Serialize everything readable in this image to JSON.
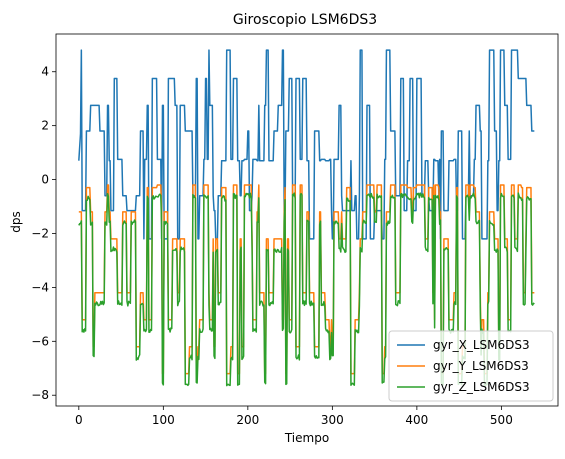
{
  "chart_data": {
    "type": "line",
    "title": "Giroscopio LSM6DS3",
    "xlabel": "Tiempo",
    "ylabel": "dps",
    "xlim": [
      -27,
      567
    ],
    "ylim": [
      -8.4,
      5.4
    ],
    "xticks": [
      0,
      100,
      200,
      300,
      400,
      500
    ],
    "yticks": [
      -8,
      -6,
      -4,
      -2,
      0,
      2,
      4
    ],
    "grid": false,
    "legend_position": "lower-right",
    "series": [
      {
        "name": "gyr_X_LSM6DS3",
        "color": "#1f77b4",
        "key": "x"
      },
      {
        "name": "gyr_Y_LSM6DS3",
        "color": "#ff7f0e",
        "key": "y"
      },
      {
        "name": "gyr_Z_LSM6DS3",
        "color": "#2ca02c",
        "key": "z"
      }
    ],
    "sample_count": 540,
    "x_levels": [
      0.7,
      0.75,
      1.8,
      2.75,
      3.75,
      4.8,
      -0.6,
      -1.15,
      -2.2
    ],
    "yz_levels": {
      "y": [
        -0.2,
        -0.3,
        -1.2,
        -2.2,
        -4.2,
        -5.2,
        -6.2,
        -7.2
      ],
      "z": [
        -0.5,
        -1.3,
        -2.5,
        -4.5,
        -5.5,
        -6.5,
        -7.6
      ]
    }
  }
}
